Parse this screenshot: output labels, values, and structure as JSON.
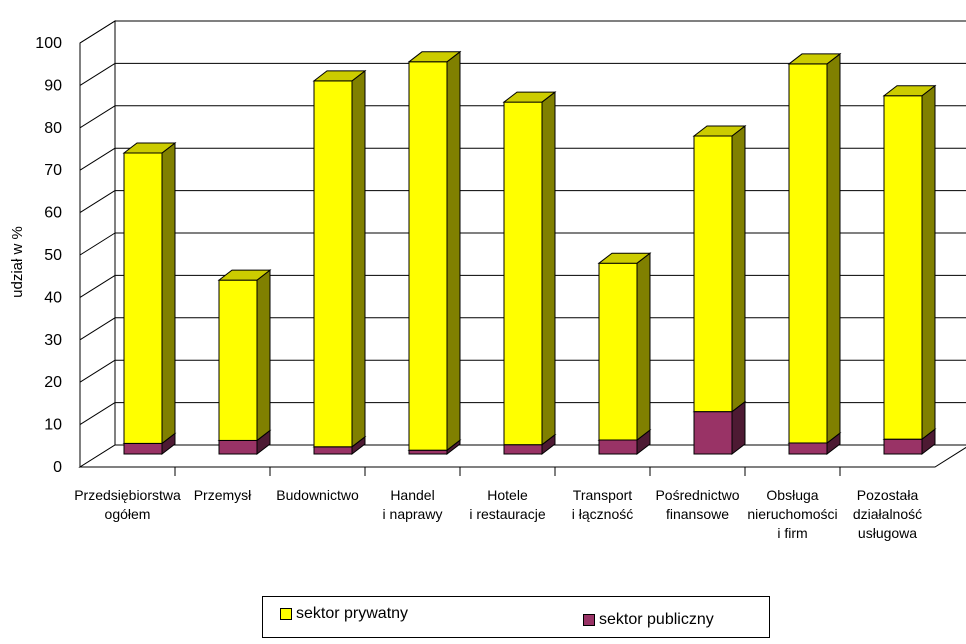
{
  "chart_data": {
    "type": "bar",
    "stacked": true,
    "three_d": true,
    "ylabel": "udział w %",
    "ylim": [
      0,
      100
    ],
    "yticks": [
      "0",
      "10",
      "20",
      "30",
      "40",
      "50",
      "60",
      "70",
      "80",
      "90",
      "100"
    ],
    "grid": true,
    "legend_position": "bottom",
    "categories": [
      [
        "Przedsiębiorstwa",
        "ogółem"
      ],
      [
        "Przemysł"
      ],
      [
        "Budownictwo"
      ],
      [
        "Handel",
        "i naprawy"
      ],
      [
        "Hotele",
        "i restauracje"
      ],
      [
        "Transport",
        "i łączność"
      ],
      [
        "Pośrednictwo",
        "finansowe"
      ],
      [
        "Obsługa",
        "nieruchomości",
        "i firm"
      ],
      [
        "Pozostała",
        "działalność",
        "usługowa"
      ]
    ],
    "series": [
      {
        "name": "sektor publiczny",
        "color": "#993366",
        "values": [
          2.5,
          3.2,
          1.7,
          0.9,
          2.2,
          3.3,
          10,
          2.6,
          3.5
        ]
      },
      {
        "name": "sektor prywatny",
        "color": "#ffff00",
        "values": [
          68.5,
          37.8,
          86.3,
          91.6,
          80.8,
          41.7,
          65,
          89.4,
          81.0
        ]
      }
    ]
  }
}
